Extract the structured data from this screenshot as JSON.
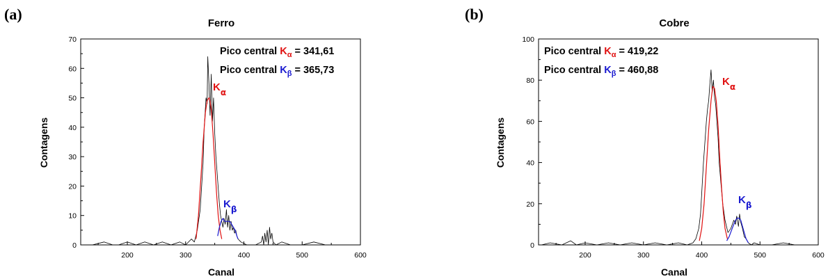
{
  "figure": {
    "panels": [
      {
        "letter": "(a)",
        "annotation_ka": {
          "prefix": "Pico central ",
          "k": "K",
          "sub": "α",
          "suffix": " = 341,61"
        },
        "annotation_kb": {
          "prefix": "Pico central ",
          "k": "K",
          "sub": "β",
          "suffix": " = 365,73"
        },
        "peak_label_ka": {
          "k": "K",
          "sub": "α"
        },
        "peak_label_kb": {
          "k": "K",
          "sub": "β"
        }
      },
      {
        "letter": "(b)",
        "annotation_ka": {
          "prefix": "Pico central ",
          "k": "K",
          "sub": "α",
          "suffix": " = 419,22"
        },
        "annotation_kb": {
          "prefix": "Pico central ",
          "k": "K",
          "sub": "β",
          "suffix": " = 460,88"
        },
        "peak_label_ka": {
          "k": "K",
          "sub": "α"
        },
        "peak_label_kb": {
          "k": "K",
          "sub": "β"
        }
      }
    ]
  },
  "colors": {
    "ka": "#e01010",
    "kb": "#1a1ad0",
    "data": "#000000",
    "axis": "#000000"
  },
  "chart_data": [
    {
      "type": "line",
      "title": "Ferro",
      "xlabel": "Canal",
      "ylabel": "Contagens",
      "xlim": [
        120,
        600
      ],
      "ylim": [
        0,
        70
      ],
      "xticks": [
        200,
        300,
        400,
        500,
        600
      ],
      "yticks": [
        0,
        10,
        20,
        30,
        40,
        50,
        60,
        70
      ],
      "grid": false,
      "series": [
        {
          "role": "data",
          "x": [
            125,
            140,
            160,
            175,
            185,
            200,
            215,
            230,
            245,
            260,
            275,
            290,
            300,
            310,
            315,
            320,
            325,
            330,
            332,
            335,
            337,
            338,
            340,
            342,
            344,
            346,
            348,
            350,
            352,
            355,
            358,
            360,
            362,
            364,
            366,
            368,
            370,
            372,
            374,
            376,
            378,
            380,
            382,
            384,
            386,
            388,
            390,
            395,
            405,
            420,
            430,
            432,
            434,
            436,
            438,
            440,
            442,
            444,
            446,
            448,
            450,
            455,
            465,
            480,
            500,
            520,
            540,
            560,
            570
          ],
          "y": [
            0,
            0,
            1,
            0,
            0,
            1,
            0,
            1,
            0,
            1,
            0,
            1,
            0,
            2,
            1,
            5,
            12,
            28,
            40,
            50,
            48,
            64,
            55,
            44,
            58,
            42,
            50,
            38,
            30,
            22,
            14,
            10,
            8,
            6,
            9,
            7,
            12,
            6,
            10,
            5,
            8,
            5,
            6,
            4,
            5,
            3,
            2,
            1,
            0,
            0,
            1,
            3,
            0,
            4,
            1,
            5,
            0,
            6,
            2,
            4,
            1,
            0,
            1,
            0,
            0,
            1,
            0,
            0,
            0
          ]
        },
        {
          "name": "Kα",
          "role": "fit-ka",
          "x": [
            318,
            322,
            326,
            330,
            334,
            337,
            340,
            342,
            344,
            347,
            350,
            353,
            356,
            359,
            362
          ],
          "y": [
            2,
            10,
            22,
            35,
            45,
            49,
            50,
            49,
            46,
            38,
            28,
            18,
            10,
            5,
            2
          ]
        },
        {
          "name": "Kβ",
          "role": "fit-kb",
          "x": [
            355,
            358,
            361,
            364,
            367,
            370,
            373,
            376,
            379,
            382,
            385,
            388,
            390
          ],
          "y": [
            3,
            6,
            8,
            9,
            8,
            8,
            8,
            8,
            7,
            6,
            5,
            3,
            2
          ]
        }
      ]
    },
    {
      "type": "line",
      "title": "Cobre",
      "xlabel": "Canal",
      "ylabel": "Contagens",
      "xlim": [
        120,
        600
      ],
      "ylim": [
        0,
        100
      ],
      "xticks": [
        200,
        300,
        400,
        500,
        600
      ],
      "yticks": [
        0,
        20,
        40,
        60,
        80,
        100
      ],
      "grid": false,
      "series": [
        {
          "role": "data",
          "x": [
            125,
            140,
            160,
            175,
            185,
            200,
            220,
            240,
            260,
            280,
            300,
            320,
            340,
            360,
            375,
            385,
            390,
            395,
            398,
            400,
            403,
            405,
            408,
            410,
            412,
            414,
            416,
            418,
            420,
            422,
            424,
            426,
            428,
            430,
            433,
            436,
            440,
            445,
            450,
            455,
            458,
            460,
            463,
            465,
            467,
            470,
            473,
            476,
            480,
            485,
            490,
            500,
            520,
            540,
            560,
            580,
            590
          ],
          "y": [
            0,
            1,
            0,
            2,
            0,
            1,
            0,
            1,
            0,
            1,
            0,
            1,
            0,
            1,
            0,
            1,
            3,
            8,
            15,
            25,
            40,
            48,
            60,
            66,
            70,
            78,
            85,
            74,
            80,
            72,
            68,
            60,
            52,
            40,
            30,
            20,
            12,
            6,
            8,
            12,
            10,
            14,
            9,
            15,
            11,
            8,
            4,
            3,
            1,
            0,
            1,
            0,
            0,
            1,
            0,
            0,
            0
          ]
        },
        {
          "name": "Kα",
          "role": "fit-ka",
          "x": [
            396,
            400,
            404,
            408,
            412,
            416,
            419,
            422,
            425,
            428,
            431,
            434,
            437,
            440,
            444
          ],
          "y": [
            2,
            8,
            20,
            38,
            56,
            70,
            77,
            76,
            70,
            58,
            42,
            28,
            16,
            8,
            3
          ]
        },
        {
          "name": "Kβ",
          "role": "fit-kb",
          "x": [
            443,
            447,
            451,
            455,
            458,
            461,
            464,
            467,
            470,
            473,
            476,
            480
          ],
          "y": [
            2,
            4,
            7,
            10,
            12,
            13,
            13,
            12,
            9,
            6,
            3,
            1
          ]
        }
      ]
    }
  ]
}
